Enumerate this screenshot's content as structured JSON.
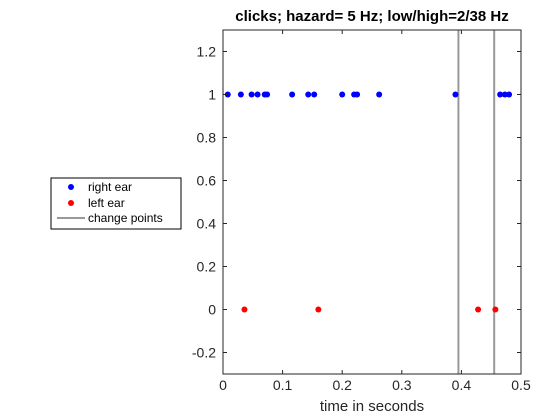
{
  "chart_data": {
    "type": "scatter",
    "title": "clicks; hazard= 5 Hz; low/high=2/38 Hz",
    "xlabel": "time in seconds",
    "ylabel": "",
    "xlim": [
      0,
      0.5
    ],
    "ylim": [
      -0.3,
      1.3
    ],
    "xticks": [
      0,
      0.1,
      0.2,
      0.3,
      0.4,
      0.5
    ],
    "xtick_labels": [
      "0",
      "0.1",
      "0.2",
      "0.3",
      "0.4",
      "0.5"
    ],
    "yticks": [
      -0.2,
      0,
      0.2,
      0.4,
      0.6,
      0.8,
      1,
      1.2
    ],
    "ytick_labels": [
      "-0.2",
      "0",
      "0.2",
      "0.4",
      "0.6",
      "0.8",
      "1",
      "1.2"
    ],
    "grid": false,
    "legend_placement": "outside-left",
    "series": [
      {
        "name": "right ear",
        "color": "#0000ff",
        "x": [
          0.008,
          0.03,
          0.048,
          0.058,
          0.07,
          0.074,
          0.116,
          0.143,
          0.153,
          0.2,
          0.22,
          0.225,
          0.262,
          0.39,
          0.465,
          0.473,
          0.48
        ],
        "y": [
          1,
          1,
          1,
          1,
          1,
          1,
          1,
          1,
          1,
          1,
          1,
          1,
          1,
          1,
          1,
          1,
          1
        ]
      },
      {
        "name": "left ear",
        "color": "#ff0000",
        "x": [
          0.036,
          0.16,
          0.428,
          0.457
        ],
        "y": [
          0,
          0,
          0,
          0
        ]
      },
      {
        "name": "change points",
        "color": "#999999",
        "type": "vline",
        "x": [
          0.395,
          0.455
        ]
      }
    ]
  }
}
